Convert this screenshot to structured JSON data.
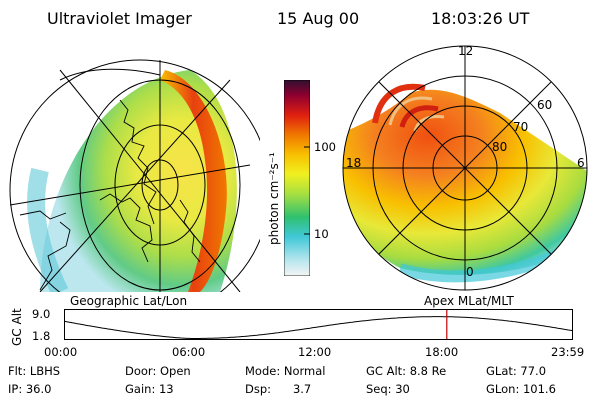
{
  "header": {
    "title": "Ultraviolet Imager",
    "date": "15 Aug 00",
    "time": "18:03:26 UT"
  },
  "left_panel": {
    "caption": "Geographic Lat/Lon"
  },
  "right_panel": {
    "caption": "Apex  MLat/MLT",
    "mlt_labels": {
      "top": "12",
      "left": "18",
      "right": "6",
      "bottom": "0"
    },
    "mlat_labels": [
      "80",
      "70",
      "60"
    ]
  },
  "colorbar": {
    "unit": "photon cm⁻²s⁻¹",
    "scale": "log",
    "tick_labels": [
      "100",
      "10"
    ],
    "tick_values": [
      100,
      10
    ],
    "colors": [
      "#f4f4f4",
      "#b8e6ee",
      "#40c8d8",
      "#30c070",
      "#a8e040",
      "#f0f020",
      "#f8c000",
      "#f07800",
      "#e02010",
      "#900030",
      "#301030"
    ]
  },
  "altitude_plot": {
    "ylabel": "GC Alt",
    "y_ticks": [
      "9.0",
      "1.8"
    ],
    "y_tick_values": [
      9.0,
      1.8
    ],
    "x_ticks": [
      "00:00",
      "06:00",
      "12:00",
      "18:00",
      "23:59"
    ],
    "x_tick_hours": [
      0,
      6,
      12,
      18,
      23.98
    ],
    "marker_hour": 18.06,
    "marker_color": "#c00000"
  },
  "info": {
    "filter": "Flt: LBHS",
    "door": "Door: Open",
    "mode": "Mode: Normal",
    "gc_alt": "GC Alt: 8.8 Re",
    "glat": "GLat: 77.0",
    "ip": "IP: 36.0",
    "gain": "Gain: 13",
    "dsp": "Dsp:      3.7",
    "seq": "Seq: 30",
    "glon": "GLon: 101.6"
  }
}
